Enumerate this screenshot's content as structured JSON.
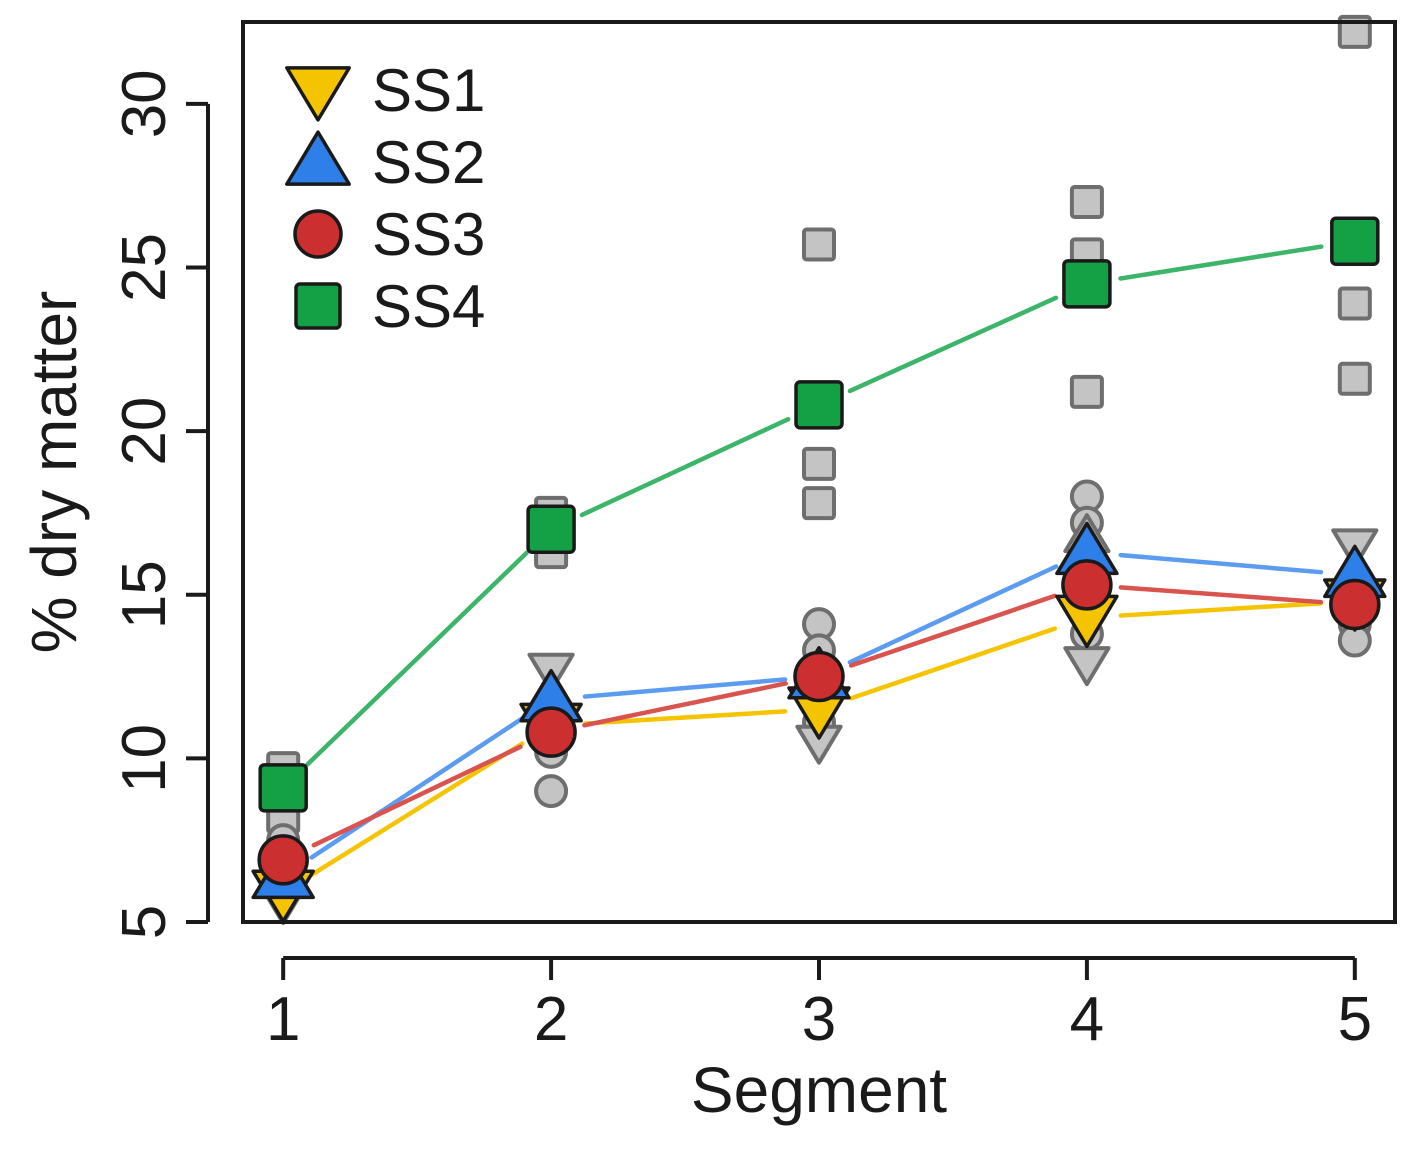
{
  "chart_data": {
    "type": "line",
    "title": "",
    "xlabel": "Segment",
    "ylabel": "% dry matter",
    "categories": [
      "1",
      "2",
      "3",
      "4",
      "5"
    ],
    "x": [
      1,
      2,
      3,
      4,
      5
    ],
    "xlim": [
      0.85,
      5.15
    ],
    "ylim": [
      5,
      32.5
    ],
    "yticks": [
      5,
      10,
      15,
      20,
      25,
      30
    ],
    "ytick_labels": [
      "5",
      "10",
      "15",
      "20",
      "25",
      "30"
    ],
    "legend_position": "top-left",
    "series": [
      {
        "name": "SS1",
        "marker": "triangle-down",
        "color": "#F5C400",
        "line_color": "#F5C400",
        "values": [
          5.9,
          11.0,
          11.5,
          14.3,
          14.8
        ]
      },
      {
        "name": "SS2",
        "marker": "triangle-up",
        "color": "#2E7FE8",
        "line_color": "#5B9BF0",
        "values": [
          6.4,
          11.8,
          12.5,
          16.3,
          15.6
        ]
      },
      {
        "name": "SS3",
        "marker": "circle",
        "color": "#CC2F2F",
        "line_color": "#D9534F",
        "values": [
          6.9,
          10.8,
          12.5,
          15.3,
          14.7
        ]
      },
      {
        "name": "SS4",
        "marker": "square",
        "color": "#14A045",
        "line_color": "#3CB46A",
        "values": [
          9.1,
          17.0,
          20.8,
          24.5,
          25.8
        ]
      }
    ],
    "replicates": [
      {
        "shape": "square",
        "x": 1,
        "y": 9.7
      },
      {
        "shape": "square",
        "x": 1,
        "y": 8.2
      },
      {
        "shape": "circle",
        "x": 1,
        "y": 7.5
      },
      {
        "shape": "circle",
        "x": 1,
        "y": 6.3
      },
      {
        "shape": "triangle-down",
        "x": 1,
        "y": 5.6
      },
      {
        "shape": "square",
        "x": 2,
        "y": 17.5
      },
      {
        "shape": "square",
        "x": 2,
        "y": 16.3
      },
      {
        "shape": "triangle-down",
        "x": 2,
        "y": 12.7
      },
      {
        "shape": "circle",
        "x": 2,
        "y": 10.2
      },
      {
        "shape": "circle",
        "x": 2,
        "y": 9.0
      },
      {
        "shape": "square",
        "x": 3,
        "y": 25.7
      },
      {
        "shape": "square",
        "x": 3,
        "y": 19.0
      },
      {
        "shape": "square",
        "x": 3,
        "y": 17.8
      },
      {
        "shape": "circle",
        "x": 3,
        "y": 14.1
      },
      {
        "shape": "circle",
        "x": 3,
        "y": 13.3
      },
      {
        "shape": "circle",
        "x": 3,
        "y": 11.1
      },
      {
        "shape": "triangle-down",
        "x": 3,
        "y": 10.5
      },
      {
        "shape": "square",
        "x": 4,
        "y": 27.0
      },
      {
        "shape": "square",
        "x": 4,
        "y": 25.4
      },
      {
        "shape": "square",
        "x": 4,
        "y": 21.2
      },
      {
        "shape": "circle",
        "x": 4,
        "y": 18.0
      },
      {
        "shape": "circle",
        "x": 4,
        "y": 17.2
      },
      {
        "shape": "triangle-up",
        "x": 4,
        "y": 16.8
      },
      {
        "shape": "circle",
        "x": 4,
        "y": 13.8
      },
      {
        "shape": "triangle-down",
        "x": 4,
        "y": 12.9
      },
      {
        "shape": "square",
        "x": 5,
        "y": 32.2
      },
      {
        "shape": "square",
        "x": 5,
        "y": 23.9
      },
      {
        "shape": "square",
        "x": 5,
        "y": 21.6
      },
      {
        "shape": "triangle-down",
        "x": 5,
        "y": 16.5
      },
      {
        "shape": "circle",
        "x": 5,
        "y": 14.1
      },
      {
        "shape": "circle",
        "x": 5,
        "y": 13.6
      }
    ]
  }
}
